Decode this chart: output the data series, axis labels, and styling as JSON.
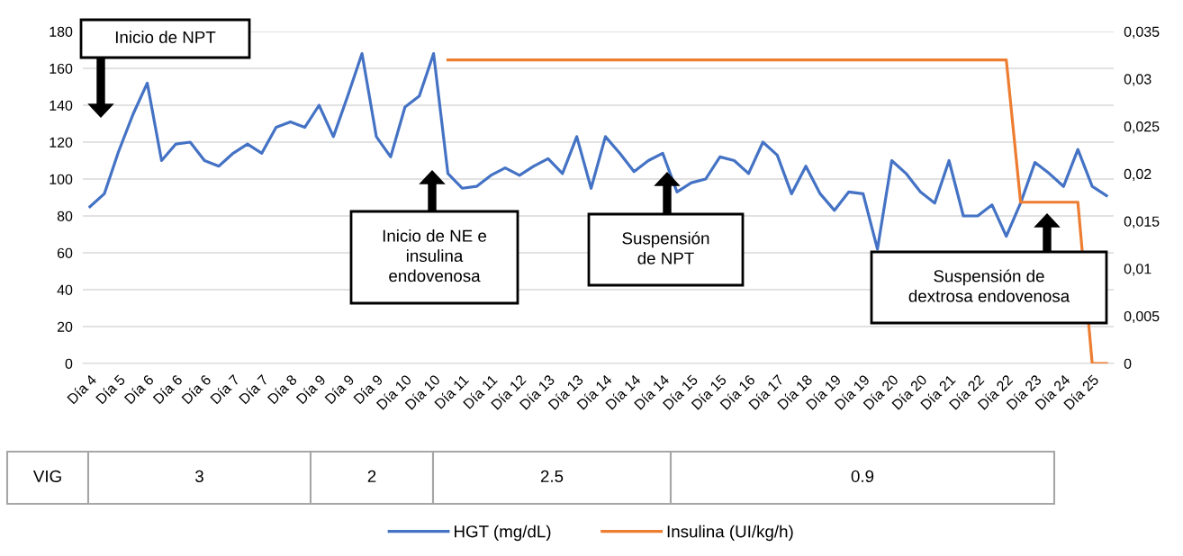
{
  "chart_data": {
    "type": "line",
    "categories": [
      "Día 4",
      null,
      "Día 5",
      null,
      "Día 6",
      null,
      "Día 6",
      null,
      "Día 6",
      null,
      "Día 7",
      null,
      "Día 7",
      null,
      "Día 8",
      null,
      "Día 9",
      null,
      "Día 9",
      null,
      "Día 9",
      null,
      "Día 10",
      null,
      "Día 10",
      null,
      "Día 11",
      null,
      "Día 11",
      null,
      "Día 12",
      null,
      "Día 13",
      null,
      "Día 13",
      null,
      "Día 14",
      null,
      "Día 14",
      null,
      "Día 14",
      null,
      "Día 15",
      null,
      "Día 15",
      null,
      "Día 16",
      null,
      "Día 17",
      null,
      "Día 18",
      null,
      "Día 19",
      null,
      "Día 19",
      null,
      "Día 20",
      null,
      "Día 20",
      null,
      "Día 21",
      null,
      "Día 22",
      null,
      "Día 22",
      null,
      "Día 23",
      null,
      "Día 24",
      null,
      "Día 25",
      null
    ],
    "series": [
      {
        "name": "HGT (mg/dL)",
        "color": "#4472c4",
        "values": [
          85,
          92,
          115,
          135,
          152,
          110,
          119,
          120,
          110,
          107,
          114,
          119,
          114,
          128,
          131,
          128,
          140,
          123,
          145,
          168,
          123,
          112,
          139,
          145,
          168,
          103,
          95,
          96,
          102,
          106,
          102,
          107,
          111,
          103,
          123,
          95,
          123,
          114,
          104,
          110,
          114,
          93,
          98,
          100,
          112,
          110,
          103,
          120,
          113,
          92,
          107,
          92,
          83,
          93,
          92,
          62,
          110,
          103,
          93,
          87,
          110,
          80,
          80,
          86,
          69,
          87,
          109,
          103,
          96,
          116,
          96,
          91
        ]
      },
      {
        "name": "Insulina (UI/kg/h)",
        "color": "#ed7d31",
        "axis": "y2",
        "values": [
          null,
          null,
          null,
          null,
          null,
          null,
          null,
          null,
          null,
          null,
          null,
          null,
          null,
          null,
          null,
          null,
          null,
          null,
          null,
          null,
          null,
          null,
          null,
          null,
          null,
          0.032,
          0.032,
          0.032,
          0.032,
          0.032,
          0.032,
          0.032,
          0.032,
          0.032,
          0.032,
          0.032,
          0.032,
          0.032,
          0.032,
          0.032,
          0.032,
          0.032,
          0.032,
          0.032,
          0.032,
          0.032,
          0.032,
          0.032,
          0.032,
          0.032,
          0.032,
          0.032,
          0.032,
          0.032,
          0.032,
          0.032,
          0.032,
          0.032,
          0.032,
          0.032,
          0.032,
          0.032,
          0.032,
          0.032,
          0.032,
          0.017,
          0.017,
          0.017,
          0.017,
          0.017,
          0,
          0
        ]
      }
    ],
    "ylim": [
      0,
      180
    ],
    "yticks": [
      0,
      20,
      40,
      60,
      80,
      100,
      120,
      140,
      160,
      180
    ],
    "y2lim": [
      0,
      0.035
    ],
    "y2ticks": [
      0,
      {
        "value": 0.005,
        "label": "0,005"
      },
      {
        "value": 0.01,
        "label": "0,01"
      },
      {
        "value": 0.015,
        "label": "0,015"
      },
      {
        "value": 0.02,
        "label": "0,02"
      },
      {
        "value": 0.025,
        "label": "0,025"
      },
      {
        "value": 0.03,
        "label": "0,03"
      },
      {
        "value": 0.035,
        "label": "0,035"
      }
    ],
    "grid": "y",
    "legend": "bottom",
    "annotations": [
      "Inicio de NPT",
      "Inicio de NE e\ninsulina\nendovenosa",
      "Suspensión\nde NPT",
      "Suspensión de\ndextrosa endovenosa",
      "VIG",
      "3",
      "2",
      "2.5",
      "0.9"
    ]
  }
}
